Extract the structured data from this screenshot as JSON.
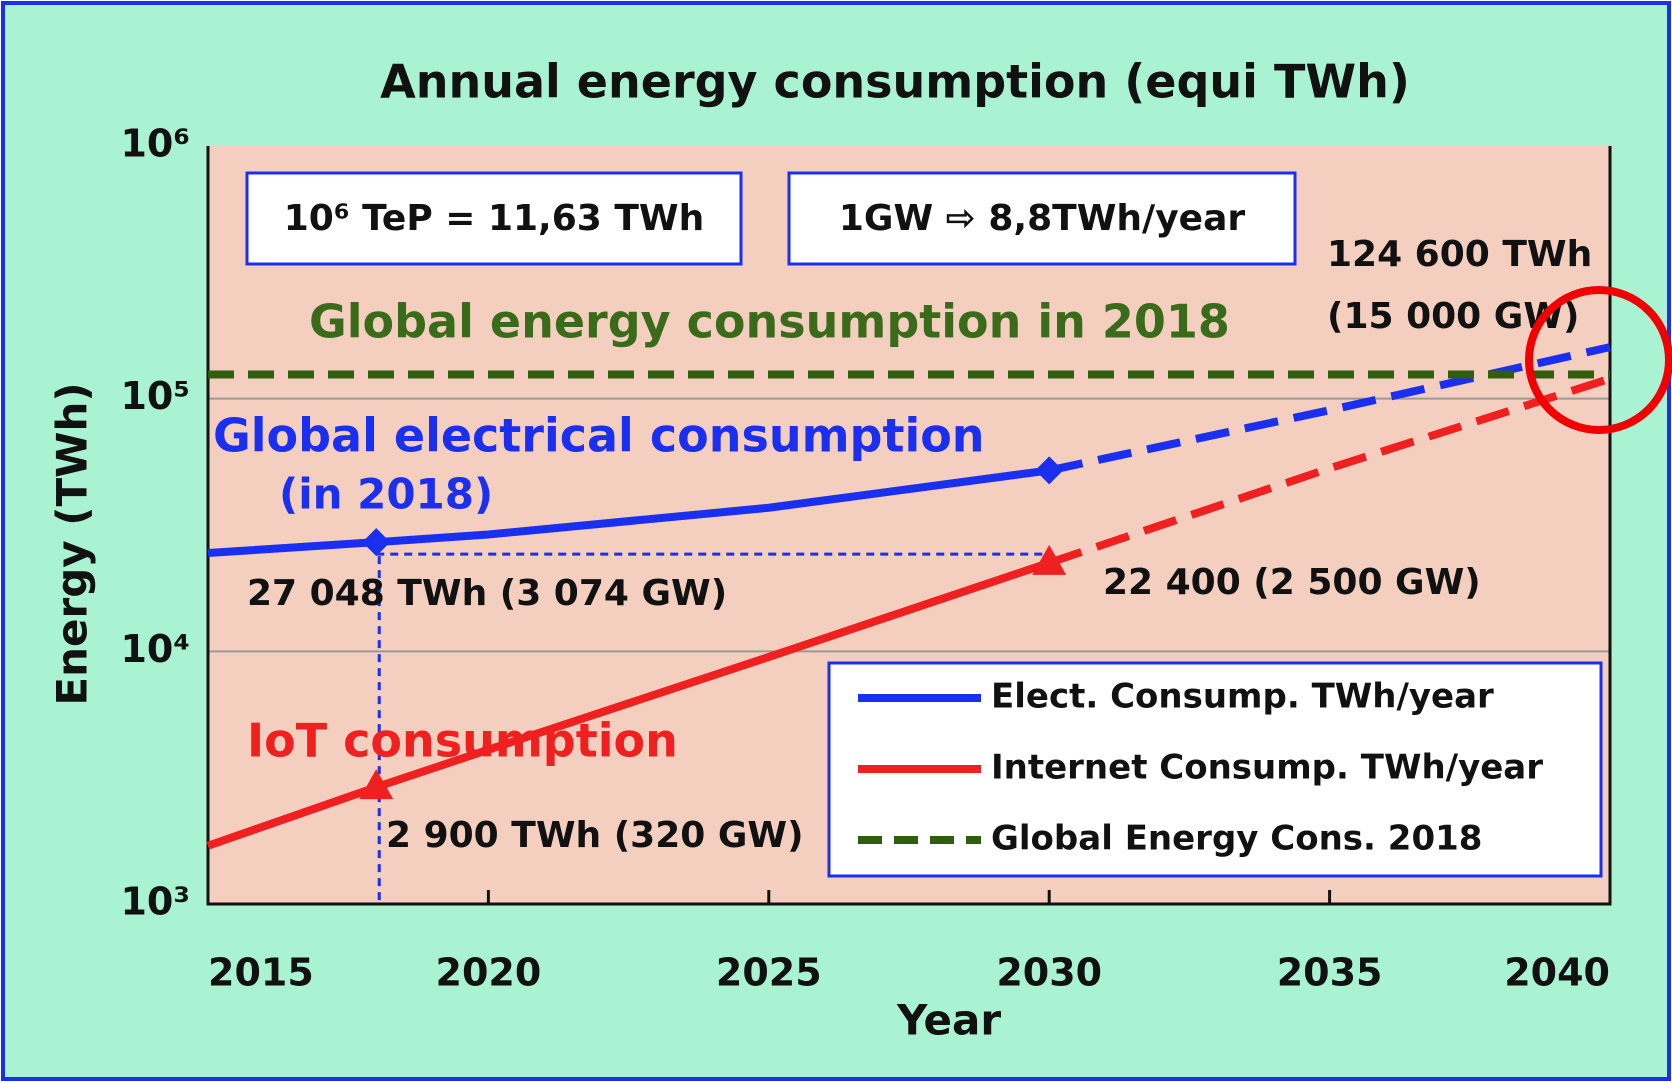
{
  "chart_data": {
    "type": "line",
    "title": "Annual energy consumption (equi TWh)",
    "x_label": "Year",
    "y_label": "Energy (TWh)",
    "x": [
      2015,
      2018,
      2020,
      2025,
      2030,
      2035,
      2040
    ],
    "series": [
      {
        "name": "Elect. Consump. TWh/year",
        "color": "#1a2ff0",
        "marker": "diamond",
        "values": [
          24500,
          27048,
          29000,
          37000,
          52000,
          90000,
          160000
        ]
      },
      {
        "name": "Internet Consump. TWh/year",
        "color": "#f02020",
        "marker": "triangle",
        "values": [
          1700,
          2900,
          4080,
          9500,
          22400,
          53000,
          120000
        ]
      },
      {
        "name": "Global Energy Cons. 2018",
        "color": "#2e5e0e",
        "dashed": true,
        "values": [
          124600,
          124600,
          124600,
          124600,
          124600,
          124600,
          124600
        ]
      }
    ],
    "forecast_from": 2030,
    "marked_x": [
      2018,
      2030
    ],
    "xlim": [
      2015,
      2040
    ],
    "xticks": [
      2015,
      2020,
      2025,
      2030,
      2035,
      2040
    ],
    "ylim": [
      1000,
      1000000
    ],
    "log_y": true,
    "yticks": [
      {
        "value": 1000,
        "label": "10³"
      },
      {
        "value": 10000,
        "label": "10⁴"
      },
      {
        "value": 100000,
        "label": "10⁵"
      },
      {
        "value": 1000000,
        "label": "10⁶"
      }
    ],
    "grid": true,
    "legend": "lower right",
    "annotations": {
      "box1": "10⁶ TeP = 11,63 TWh",
      "box2": "1GW ⇨ 8,8TWh/year",
      "global_value": "124 600 TWh",
      "global_gw": "(15 000 GW)",
      "global_label": "Global energy consumption in 2018",
      "elec_label": "Global electrical consumption",
      "elec_sub": "(in 2018)",
      "elec_2018": "27 048 TWh (3 074 GW)",
      "iot_2030": "22 400 (2 500 GW)",
      "iot_label": "IoT consumption",
      "iot_2018": "2 900 TWh (320 GW)"
    }
  }
}
